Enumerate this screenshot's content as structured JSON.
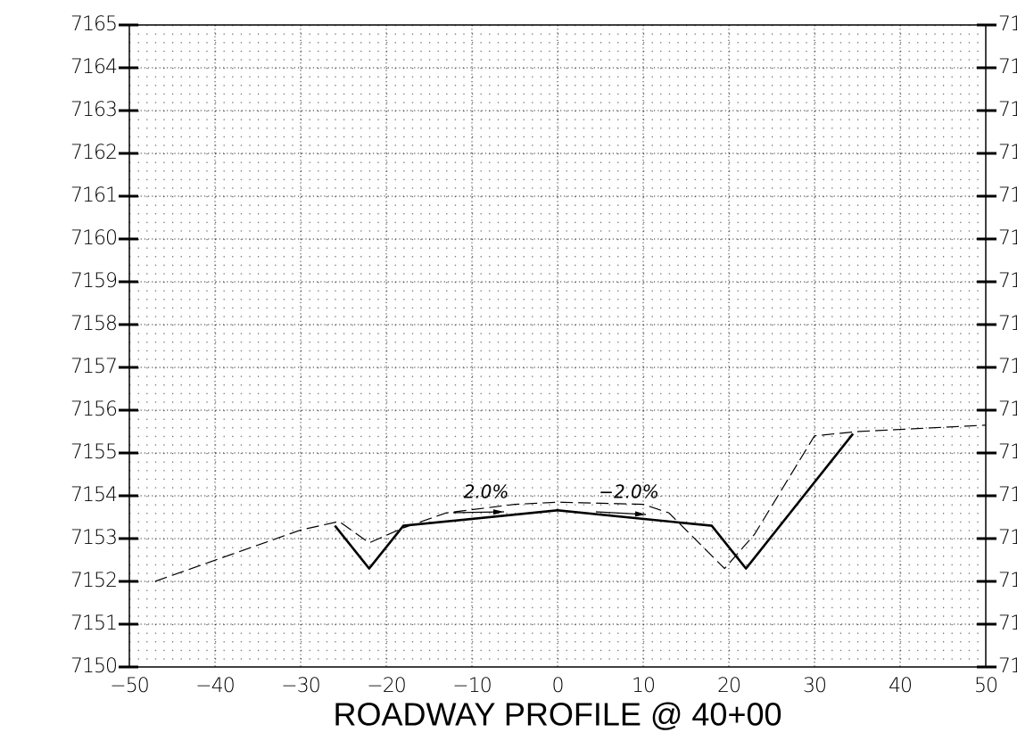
{
  "chart_data": {
    "type": "line",
    "title": "ROADWAY PROFILE @ 40+00",
    "xlim": [
      -50,
      50
    ],
    "xticks": [
      {
        "value": -50,
        "label": "−50"
      },
      {
        "value": -40,
        "label": "−40"
      },
      {
        "value": -30,
        "label": "−30"
      },
      {
        "value": -20,
        "label": "−20"
      },
      {
        "value": -10,
        "label": "−10"
      },
      0,
      10,
      20,
      30,
      40,
      50
    ],
    "ylim": [
      7150,
      7165
    ],
    "yticks": [
      7150,
      7151,
      7152,
      7153,
      7154,
      7155,
      7156,
      7157,
      7158,
      7159,
      7160,
      7161,
      7162,
      7163,
      7164,
      7165
    ],
    "grid": true,
    "series": [
      {
        "color": "#000000",
        "style": "solid",
        "x": [
          -26,
          -22,
          -18,
          0,
          18,
          22,
          34.5
        ],
        "values": [
          7153.3,
          7152.3,
          7153.3,
          7153.66,
          7153.3,
          7152.3,
          7155.45
        ]
      },
      {
        "color": "#000000",
        "style": "dashed",
        "x": [
          -47,
          -30,
          -25.5,
          -22,
          -18,
          -13,
          -5,
          0,
          10,
          13,
          16,
          19.5,
          23,
          30,
          35,
          50
        ],
        "values": [
          7152.0,
          7153.2,
          7153.4,
          7152.9,
          7153.25,
          7153.6,
          7153.8,
          7153.85,
          7153.8,
          7153.6,
          7153.0,
          7152.3,
          7153.1,
          7155.4,
          7155.5,
          7155.65
        ]
      }
    ],
    "annotations": [
      "2.0%",
      "−2.0%"
    ]
  }
}
